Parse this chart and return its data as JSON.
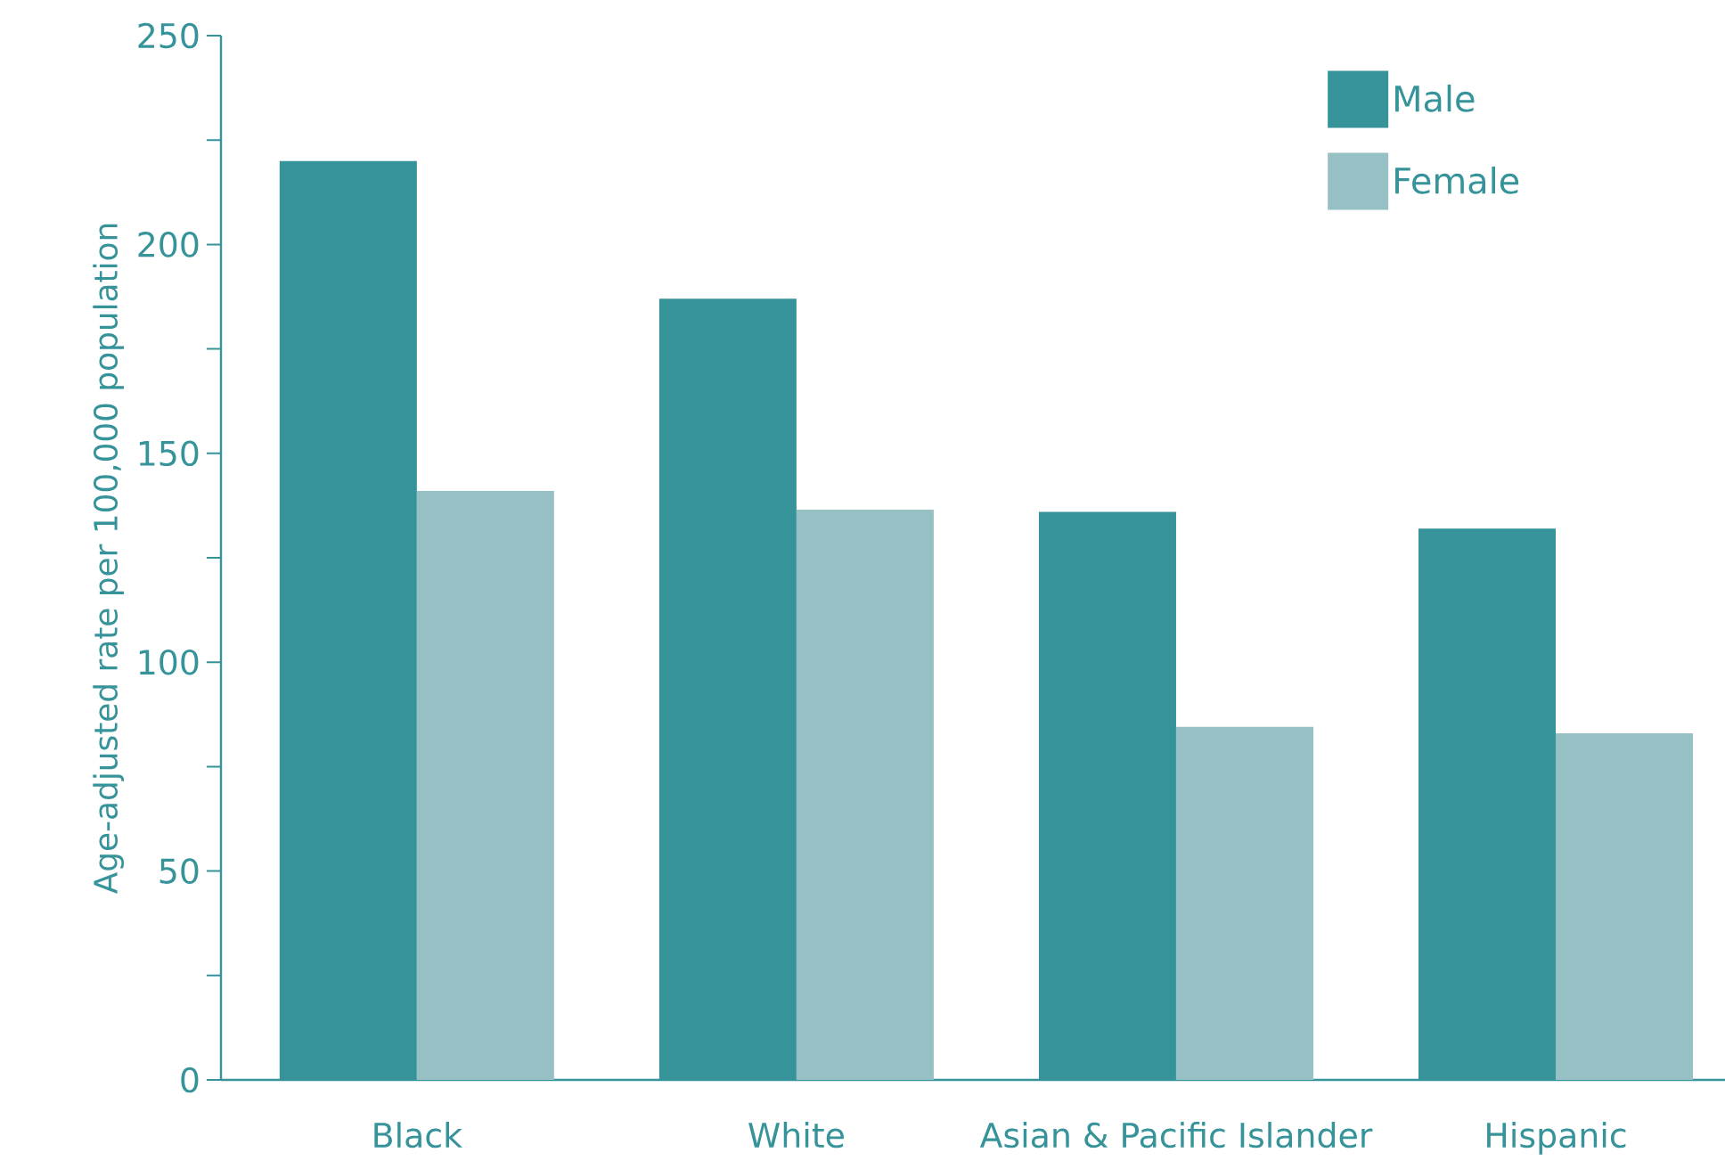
{
  "chart_data": {
    "type": "bar",
    "ylabel": "Age-adjusted rate per 100,000 population",
    "categories": [
      "Black",
      "White",
      "Asian & Pacific Islander",
      "Hispanic"
    ],
    "series": [
      {
        "name": "Male",
        "color": "#36939a",
        "values": [
          220,
          187,
          136,
          132
        ]
      },
      {
        "name": "Female",
        "color": "#97c0c5",
        "values": [
          141,
          136.5,
          84.5,
          83
        ]
      }
    ],
    "ylim": [
      0,
      250
    ],
    "yticks": [
      0,
      {
        "value": 25,
        "label": null
      },
      50,
      {
        "value": 75,
        "label": null
      },
      100,
      {
        "value": 125,
        "label": null
      },
      150,
      {
        "value": 175,
        "label": null
      },
      200,
      {
        "value": 225,
        "label": null
      },
      250
    ],
    "grid": false,
    "legend": "top right"
  }
}
